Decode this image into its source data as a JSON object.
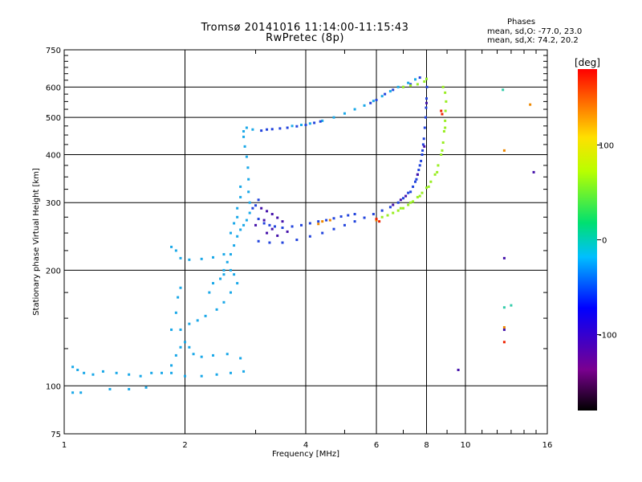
{
  "header": {
    "title": "Tromsø 20141016 11:14:00-11:15:43",
    "subtitle": "RwPretec (8p)"
  },
  "phases": {
    "heading": "Phases",
    "line_o": "mean, sd,O: -77.0, 23.0",
    "line_x": "mean, sd,X:  74.2, 20.2"
  },
  "colorbar": {
    "label": "[deg]",
    "ticks": [
      "100",
      "0",
      "-100"
    ],
    "tick_values": [
      100,
      0,
      -100
    ],
    "range": [
      -180,
      180
    ]
  },
  "chart_data": {
    "type": "scatter",
    "xlabel": "Frequency [MHz]",
    "ylabel": "Stationary phase Virtual Height [km]",
    "x_scale": "log",
    "y_scale": "log",
    "xlim": [
      1,
      16
    ],
    "ylim": [
      75,
      750
    ],
    "x_ticks": [
      1,
      2,
      4,
      6,
      8,
      10,
      16
    ],
    "x_tick_labels": [
      "1",
      "2",
      "4",
      "6",
      "8",
      "10",
      "16"
    ],
    "y_ticks": [
      75,
      100,
      200,
      300,
      400,
      500,
      600,
      750
    ],
    "y_tick_labels": [
      "75",
      "100",
      "200",
      "300",
      "400",
      "500",
      "600",
      "750"
    ],
    "grid": true,
    "color_variable": "phase (deg)",
    "series": [
      {
        "color": "#1aa8e8",
        "points": [
          [
            1.05,
            112
          ],
          [
            1.08,
            110
          ],
          [
            1.12,
            108
          ],
          [
            1.18,
            107
          ],
          [
            1.25,
            109
          ],
          [
            1.35,
            108
          ],
          [
            1.45,
            107
          ],
          [
            1.55,
            106
          ],
          [
            1.65,
            108
          ],
          [
            1.05,
            96
          ],
          [
            1.1,
            96
          ],
          [
            1.3,
            98
          ],
          [
            1.45,
            98
          ],
          [
            1.6,
            99
          ],
          [
            1.75,
            108
          ],
          [
            1.85,
            113
          ],
          [
            1.9,
            120
          ],
          [
            1.95,
            126
          ],
          [
            2.0,
            130
          ],
          [
            2.05,
            126
          ],
          [
            2.1,
            121
          ],
          [
            2.2,
            119
          ],
          [
            2.35,
            120
          ],
          [
            2.55,
            121
          ],
          [
            2.75,
            118
          ],
          [
            1.85,
            108
          ],
          [
            2.0,
            106
          ],
          [
            2.2,
            106
          ],
          [
            2.4,
            107
          ],
          [
            2.6,
            108
          ],
          [
            2.8,
            109
          ],
          [
            1.95,
            140
          ],
          [
            2.05,
            145
          ],
          [
            2.15,
            148
          ],
          [
            2.25,
            152
          ],
          [
            2.4,
            158
          ],
          [
            2.5,
            165
          ],
          [
            2.6,
            175
          ],
          [
            2.7,
            185
          ],
          [
            2.5,
            200
          ],
          [
            2.55,
            210
          ],
          [
            2.6,
            220
          ],
          [
            2.65,
            232
          ],
          [
            2.7,
            245
          ],
          [
            2.75,
            255
          ],
          [
            2.8,
            262
          ],
          [
            2.85,
            270
          ],
          [
            2.9,
            282
          ],
          [
            2.9,
            300
          ],
          [
            2.88,
            320
          ],
          [
            2.88,
            345
          ],
          [
            2.87,
            370
          ],
          [
            2.85,
            395
          ],
          [
            2.82,
            420
          ],
          [
            2.8,
            445
          ],
          [
            2.45,
            190
          ],
          [
            2.5,
            195
          ],
          [
            2.35,
            185
          ],
          [
            2.3,
            175
          ],
          [
            2.6,
            200
          ],
          [
            2.65,
            195
          ],
          [
            2.6,
            250
          ],
          [
            2.65,
            265
          ],
          [
            2.7,
            275
          ],
          [
            2.7,
            290
          ],
          [
            2.75,
            310
          ],
          [
            2.75,
            330
          ],
          [
            1.85,
            230
          ],
          [
            1.9,
            225
          ],
          [
            1.95,
            215
          ],
          [
            2.05,
            213
          ],
          [
            2.2,
            214
          ],
          [
            2.35,
            216
          ],
          [
            2.5,
            220
          ],
          [
            1.85,
            140
          ],
          [
            1.9,
            155
          ],
          [
            1.92,
            170
          ],
          [
            1.95,
            180
          ],
          [
            2.8,
            460
          ],
          [
            2.85,
            470
          ],
          [
            2.95,
            465
          ],
          [
            3.7,
            475
          ],
          [
            3.9,
            478
          ],
          [
            4.1,
            482
          ],
          [
            4.4,
            490
          ],
          [
            4.7,
            500
          ],
          [
            5.0,
            512
          ],
          [
            5.3,
            525
          ],
          [
            5.6,
            537
          ],
          [
            5.9,
            552
          ],
          [
            6.2,
            568
          ],
          [
            6.5,
            585
          ],
          [
            6.8,
            600
          ],
          [
            7.2,
            615
          ],
          [
            7.5,
            628
          ]
        ]
      },
      {
        "color": "#2244dd",
        "points": [
          [
            3.1,
            462
          ],
          [
            3.2,
            465
          ],
          [
            3.3,
            466
          ],
          [
            3.45,
            468
          ],
          [
            3.6,
            470
          ],
          [
            3.8,
            474
          ],
          [
            4.0,
            478
          ],
          [
            4.2,
            484
          ],
          [
            4.35,
            488
          ],
          [
            3.05,
            272
          ],
          [
            3.15,
            265
          ],
          [
            3.25,
            262
          ],
          [
            3.35,
            260
          ],
          [
            3.5,
            258
          ],
          [
            3.7,
            260
          ],
          [
            3.9,
            262
          ],
          [
            4.1,
            265
          ],
          [
            4.3,
            268
          ],
          [
            4.5,
            270
          ],
          [
            4.7,
            273
          ],
          [
            4.9,
            276
          ],
          [
            5.1,
            278
          ],
          [
            5.3,
            280
          ],
          [
            3.05,
            238
          ],
          [
            3.25,
            236
          ],
          [
            3.5,
            236
          ],
          [
            3.8,
            240
          ],
          [
            4.1,
            245
          ],
          [
            4.4,
            250
          ],
          [
            4.7,
            256
          ],
          [
            5.0,
            262
          ],
          [
            5.3,
            268
          ],
          [
            5.6,
            274
          ],
          [
            5.9,
            280
          ],
          [
            6.2,
            286
          ],
          [
            6.5,
            292
          ],
          [
            6.8,
            300
          ],
          [
            7.0,
            308
          ],
          [
            7.2,
            318
          ],
          [
            7.4,
            330
          ],
          [
            7.55,
            345
          ],
          [
            7.65,
            365
          ],
          [
            7.75,
            385
          ],
          [
            7.82,
            410
          ],
          [
            7.88,
            440
          ],
          [
            7.92,
            470
          ],
          [
            7.96,
            500
          ],
          [
            7.98,
            530
          ],
          [
            8.0,
            560
          ],
          [
            8.02,
            600
          ],
          [
            8.0,
            630
          ],
          [
            3.0,
            295
          ],
          [
            3.05,
            305
          ],
          [
            2.95,
            290
          ],
          [
            5.8,
            545
          ],
          [
            6.0,
            555
          ],
          [
            6.3,
            575
          ],
          [
            6.6,
            590
          ],
          [
            7.0,
            600
          ],
          [
            7.3,
            610
          ],
          [
            7.7,
            635
          ],
          [
            7.3,
            320
          ],
          [
            7.5,
            340
          ],
          [
            7.6,
            355
          ],
          [
            7.7,
            375
          ],
          [
            7.8,
            400
          ],
          [
            7.85,
            425
          ]
        ]
      },
      {
        "color": "#4411aa",
        "points": [
          [
            3.1,
            290
          ],
          [
            3.2,
            285
          ],
          [
            3.3,
            280
          ],
          [
            3.4,
            274
          ],
          [
            3.5,
            268
          ],
          [
            3.3,
            256
          ],
          [
            3.6,
            252
          ],
          [
            3.2,
            250
          ],
          [
            3.4,
            246
          ],
          [
            3.0,
            262
          ],
          [
            3.15,
            270
          ],
          [
            6.6,
            296
          ],
          [
            6.9,
            305
          ],
          [
            7.1,
            312
          ],
          [
            7.6,
            355
          ],
          [
            7.9,
            420
          ],
          [
            8.0,
            545
          ],
          [
            9.6,
            110
          ],
          [
            12.5,
            215
          ],
          [
            12.5,
            140
          ],
          [
            14.8,
            360
          ]
        ]
      },
      {
        "color": "#99ee22",
        "points": [
          [
            6.2,
            275
          ],
          [
            6.4,
            278
          ],
          [
            6.6,
            282
          ],
          [
            6.8,
            286
          ],
          [
            7.0,
            290
          ],
          [
            7.2,
            296
          ],
          [
            7.4,
            302
          ],
          [
            7.6,
            310
          ],
          [
            7.8,
            318
          ],
          [
            8.0,
            328
          ],
          [
            8.2,
            340
          ],
          [
            8.4,
            355
          ],
          [
            8.55,
            375
          ],
          [
            8.7,
            400
          ],
          [
            8.8,
            430
          ],
          [
            8.85,
            460
          ],
          [
            8.9,
            490
          ],
          [
            8.92,
            520
          ],
          [
            8.95,
            550
          ],
          [
            8.9,
            580
          ],
          [
            8.8,
            600
          ],
          [
            6.9,
            290
          ],
          [
            7.3,
            300
          ],
          [
            7.7,
            312
          ],
          [
            8.1,
            330
          ],
          [
            8.5,
            360
          ],
          [
            8.75,
            410
          ],
          [
            8.9,
            470
          ],
          [
            7.0,
            600
          ],
          [
            7.3,
            605
          ],
          [
            7.6,
            610
          ],
          [
            7.9,
            620
          ],
          [
            8.0,
            630
          ]
        ]
      },
      {
        "color": "#ee8800",
        "points": [
          [
            4.4,
            268
          ],
          [
            4.6,
            270
          ],
          [
            4.3,
            264
          ],
          [
            6.0,
            270
          ],
          [
            12.5,
            142
          ],
          [
            14.5,
            540
          ],
          [
            12.5,
            410
          ]
        ]
      },
      {
        "color": "#ee2200",
        "points": [
          [
            6.0,
            272
          ],
          [
            6.1,
            268
          ],
          [
            8.7,
            520
          ],
          [
            8.75,
            510
          ],
          [
            12.5,
            130
          ]
        ]
      },
      {
        "color": "#33ccaa",
        "points": [
          [
            12.5,
            160
          ],
          [
            13.0,
            162
          ],
          [
            12.4,
            590
          ]
        ]
      }
    ]
  }
}
